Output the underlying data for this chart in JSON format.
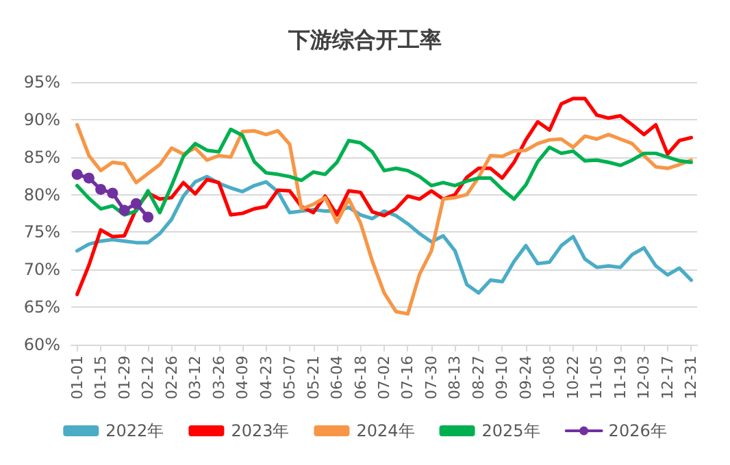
{
  "chart_data": {
    "type": "line",
    "title": "下游综合开工率",
    "categories": [
      "01-01",
      null,
      "01-15",
      null,
      "01-29",
      null,
      "02-12",
      null,
      "02-26",
      null,
      "03-12",
      null,
      "03-26",
      null,
      "04-09",
      null,
      "04-23",
      null,
      "05-07",
      null,
      "05-21",
      null,
      "06-04",
      null,
      "06-18",
      null,
      "07-02",
      null,
      "07-16",
      null,
      "07-30",
      null,
      "08-13",
      null,
      "08-27",
      null,
      "09-10",
      null,
      "09-24",
      null,
      "10-08",
      null,
      "10-22",
      null,
      "11-05",
      null,
      "11-19",
      null,
      "12-03",
      null,
      "12-17",
      null,
      "12-31"
    ],
    "series": [
      {
        "name": "2022年",
        "color": "#4bacc6",
        "marker": "none",
        "values": [
          72.5,
          73.4,
          73.8,
          74.0,
          73.8,
          73.6,
          73.6,
          74.8,
          76.7,
          79.8,
          81.7,
          82.4,
          81.5,
          80.9,
          80.4,
          81.2,
          81.7,
          80.4,
          77.6,
          77.8,
          78.0,
          77.8,
          77.8,
          78.3,
          77.3,
          76.8,
          77.8,
          77.2,
          76.1,
          74.8,
          73.7,
          74.5,
          72.5,
          68.0,
          66.9,
          68.6,
          68.4,
          71.1,
          73.2,
          70.8,
          71.0,
          73.2,
          74.4,
          71.4,
          70.3,
          70.5,
          70.3,
          72.0,
          72.9,
          70.5,
          69.3,
          70.2,
          68.6
        ]
      },
      {
        "name": "2023年",
        "color": "#ff0000",
        "marker": "none",
        "values": [
          66.7,
          70.6,
          75.3,
          74.4,
          74.5,
          78.1,
          80.2,
          79.4,
          79.6,
          81.6,
          80.1,
          82.0,
          81.6,
          77.3,
          77.5,
          78.1,
          78.4,
          80.6,
          80.5,
          78.4,
          77.6,
          79.8,
          77.3,
          80.5,
          80.3,
          77.7,
          77.2,
          78.1,
          79.8,
          79.4,
          80.5,
          79.4,
          80.0,
          82.3,
          83.5,
          83.5,
          82.2,
          84.3,
          87.3,
          89.7,
          88.6,
          92.1,
          92.8,
          92.8,
          90.6,
          90.2,
          90.5,
          89.3,
          88.0,
          89.3,
          85.4,
          87.2,
          87.6
        ]
      },
      {
        "name": "2024年",
        "color": "#f79646",
        "marker": "none",
        "values": [
          89.3,
          85.2,
          83.2,
          84.3,
          84.1,
          81.6,
          82.8,
          84.0,
          86.2,
          85.4,
          86.2,
          84.6,
          85.2,
          85.0,
          88.4,
          88.5,
          88.0,
          88.5,
          86.7,
          78.1,
          78.7,
          79.6,
          76.3,
          79.4,
          76.2,
          71.1,
          66.9,
          64.4,
          64.1,
          69.4,
          72.5,
          79.4,
          79.6,
          80.0,
          82.3,
          85.2,
          85.1,
          85.8,
          85.9,
          86.8,
          87.3,
          87.4,
          86.3,
          87.8,
          87.4,
          88.0,
          87.4,
          86.8,
          85.2,
          83.7,
          83.5,
          84.0,
          84.6
        ]
      },
      {
        "name": "2025年",
        "color": "#00b050",
        "marker": "none",
        "values": [
          81.2,
          79.5,
          78.1,
          78.5,
          77.3,
          77.8,
          80.5,
          77.6,
          81.2,
          85.1,
          86.8,
          85.9,
          85.7,
          88.7,
          87.9,
          84.4,
          82.9,
          82.7,
          82.4,
          81.9,
          83.0,
          82.7,
          84.3,
          87.2,
          86.9,
          85.7,
          83.2,
          83.5,
          83.2,
          82.4,
          81.2,
          81.6,
          81.2,
          81.8,
          82.2,
          82.2,
          80.7,
          79.4,
          81.3,
          84.4,
          86.3,
          85.5,
          85.8,
          84.5,
          84.6,
          84.3,
          83.9,
          84.6,
          85.5,
          85.5,
          85.0,
          84.5,
          84.3
        ]
      },
      {
        "name": "2026年",
        "color": "#7030a0",
        "marker": "circle",
        "values": [
          82.7,
          82.2,
          80.7,
          80.2,
          77.9,
          78.8,
          77.0,
          null,
          null,
          null,
          null,
          null,
          null,
          null,
          null,
          null,
          null,
          null,
          null,
          null,
          null,
          null,
          null,
          null,
          null,
          null,
          null,
          null,
          null,
          null,
          null,
          null,
          null,
          null,
          null,
          null,
          null,
          null,
          null,
          null,
          null,
          null,
          null,
          null,
          null,
          null,
          null,
          null,
          null,
          null,
          null,
          null,
          null
        ]
      }
    ],
    "ylim": [
      60,
      95
    ],
    "yticks": [
      {
        "value": 60,
        "label": "60%"
      },
      {
        "value": 65,
        "label": "65%"
      },
      {
        "value": 70,
        "label": "70%"
      },
      {
        "value": 75,
        "label": "75%"
      },
      {
        "value": 80,
        "label": "80%"
      },
      {
        "value": 85,
        "label": "85%"
      },
      {
        "value": 90,
        "label": "90%"
      },
      {
        "value": 95,
        "label": "95%"
      }
    ],
    "grid": "y",
    "legend": "bottom",
    "line_style": "solid"
  }
}
